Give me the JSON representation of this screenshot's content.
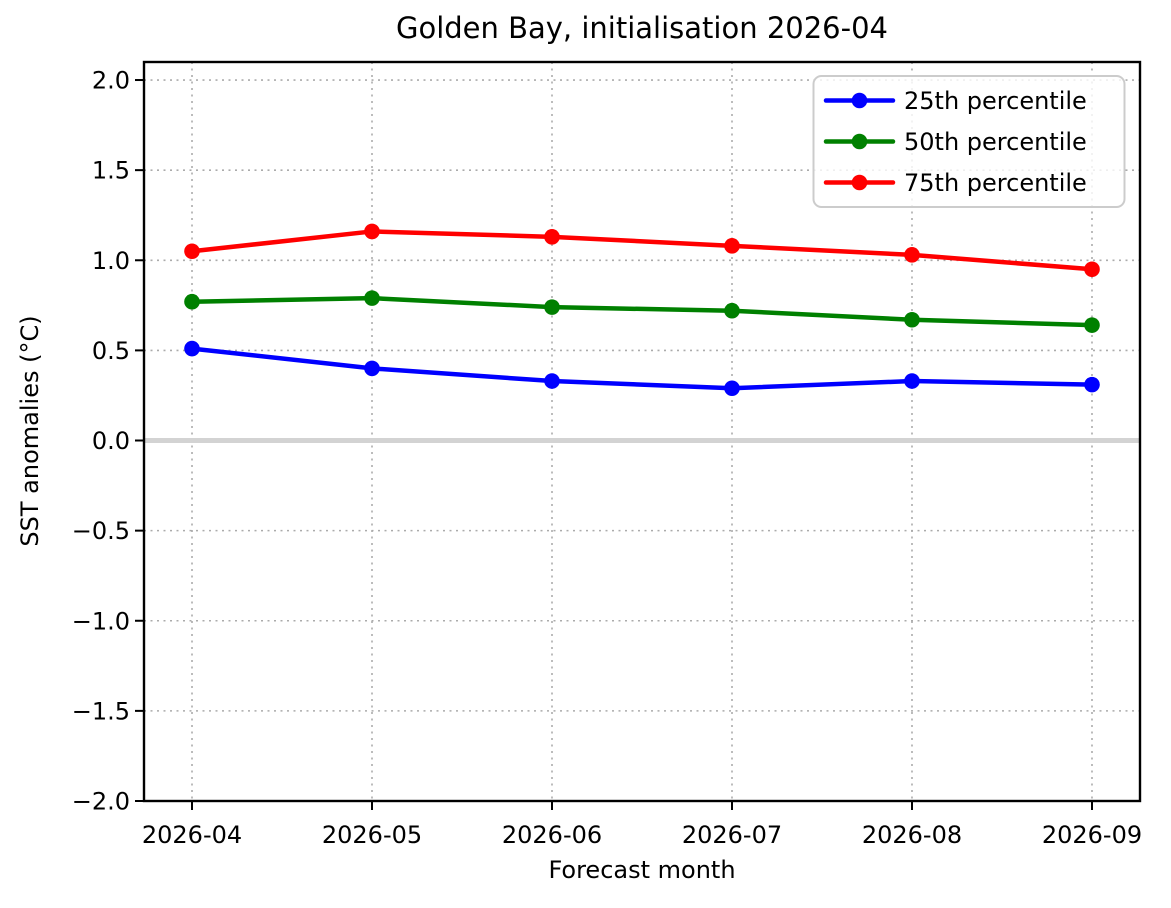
{
  "figure": {
    "background": "#ffffff"
  },
  "chart_data": {
    "type": "line",
    "title": "Golden Bay, initialisation 2026-04",
    "xlabel": "Forecast month",
    "ylabel": "SST anomalies (°C)",
    "categories": [
      "2026-04",
      "2026-05",
      "2026-06",
      "2026-07",
      "2026-08",
      "2026-09"
    ],
    "series": [
      {
        "name": "25th percentile",
        "color": "#0000ff",
        "values": [
          0.51,
          0.4,
          0.33,
          0.29,
          0.33,
          0.31
        ]
      },
      {
        "name": "50th percentile",
        "color": "#008000",
        "values": [
          0.77,
          0.79,
          0.74,
          0.72,
          0.67,
          0.64
        ]
      },
      {
        "name": "75th percentile",
        "color": "#ff0000",
        "values": [
          1.05,
          1.16,
          1.13,
          1.08,
          1.03,
          0.95
        ]
      }
    ],
    "ylim": [
      -2.0,
      2.1
    ],
    "yticks": [
      2.0,
      1.5,
      1.0,
      0.5,
      0.0,
      -0.5,
      -1.0,
      -1.5,
      -2.0
    ],
    "ytick_labels": [
      "2.0",
      "1.5",
      "1.0",
      "0.5",
      "0.0",
      "−0.5",
      "−1.0",
      "−1.5",
      "−2.0"
    ],
    "grid": true,
    "grid_style": "dotted",
    "grid_color": "#ababab",
    "zero_line_value": 0.0,
    "zero_line_color": "#d3d3d3",
    "legend_position": "upper right",
    "marker": "o"
  }
}
